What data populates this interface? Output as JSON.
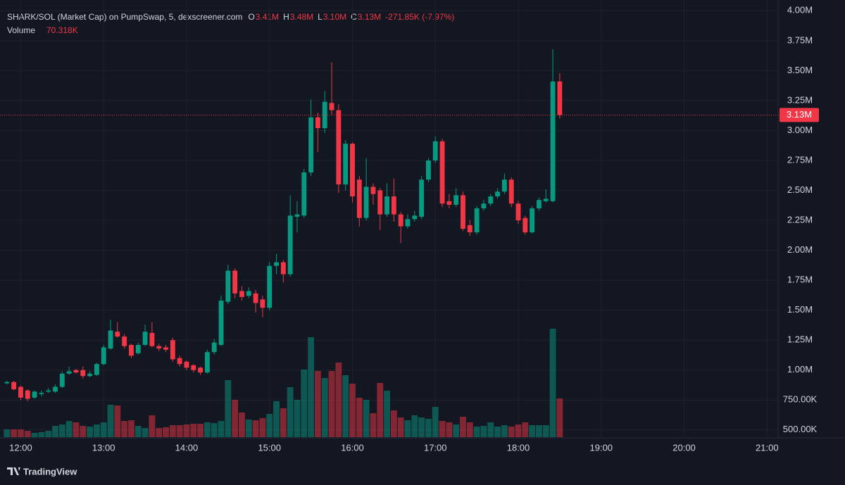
{
  "header": {
    "symbol": "SHARK/SOL (Market Cap) on PumpSwap, 5, dexscreener.com",
    "ohlc": [
      {
        "key": "O",
        "value": "3.41M"
      },
      {
        "key": "H",
        "value": "3.48M"
      },
      {
        "key": "L",
        "value": "3.10M"
      },
      {
        "key": "C",
        "value": "3.13M"
      }
    ],
    "change": "-271.85K (-7.97%)",
    "volume_label": "Volume",
    "volume_value": "70.318K"
  },
  "chart_data": {
    "type": "candlestick",
    "x": [
      "11:50",
      "11:55",
      "12:00",
      "12:05",
      "12:10",
      "12:15",
      "12:20",
      "12:25",
      "12:30",
      "12:35",
      "12:40",
      "12:45",
      "12:50",
      "12:55",
      "13:00",
      "13:05",
      "13:10",
      "13:15",
      "13:20",
      "13:25",
      "13:30",
      "13:35",
      "13:40",
      "13:45",
      "13:50",
      "13:55",
      "14:00",
      "14:05",
      "14:10",
      "14:15",
      "14:20",
      "14:25",
      "14:30",
      "14:35",
      "14:40",
      "14:45",
      "14:50",
      "14:55",
      "15:00",
      "15:05",
      "15:10",
      "15:15",
      "15:20",
      "15:25",
      "15:30",
      "15:35",
      "15:40",
      "15:45",
      "15:50",
      "15:55",
      "16:00",
      "16:05",
      "16:10",
      "16:15",
      "16:20",
      "16:25",
      "16:30",
      "16:35",
      "16:40",
      "16:45",
      "16:50",
      "16:55",
      "17:00",
      "17:05",
      "17:10",
      "17:15",
      "17:20",
      "17:25",
      "17:30",
      "17:35",
      "17:40",
      "17:45",
      "17:50",
      "17:55",
      "18:00",
      "18:05",
      "18:10",
      "18:15",
      "18:20",
      "18:25",
      "18:30"
    ],
    "open": [
      0.89,
      0.9,
      0.86,
      0.83,
      0.77,
      0.8,
      0.82,
      0.82,
      0.86,
      0.97,
      1.0,
      1.0,
      0.95,
      0.96,
      1.05,
      1.18,
      1.32,
      1.28,
      1.21,
      1.14,
      1.21,
      1.31,
      1.2,
      1.19,
      1.25,
      1.1,
      1.07,
      1.04,
      1.02,
      0.98,
      1.15,
      1.21,
      1.57,
      1.83,
      1.66,
      1.62,
      1.64,
      1.59,
      1.52,
      1.87,
      1.9,
      1.8,
      2.28,
      2.29,
      2.65,
      3.11,
      3.02,
      3.23,
      3.17,
      2.55,
      2.89,
      2.59,
      2.27,
      2.53,
      2.5,
      2.3,
      2.45,
      2.3,
      2.2,
      2.26,
      2.28,
      2.59,
      2.75,
      2.91,
      2.41,
      2.38,
      2.46,
      2.21,
      2.15,
      2.35,
      2.39,
      2.45,
      2.49,
      2.59,
      2.39,
      2.27,
      2.15,
      2.35,
      2.41,
      2.41,
      3.41
    ],
    "high": [
      0.91,
      0.91,
      0.87,
      0.84,
      0.83,
      0.83,
      0.85,
      0.88,
      0.99,
      1.03,
      1.01,
      1.03,
      0.99,
      1.06,
      1.21,
      1.42,
      1.4,
      1.3,
      1.22,
      1.23,
      1.38,
      1.4,
      1.22,
      1.21,
      1.27,
      1.12,
      1.08,
      1.05,
      1.03,
      1.17,
      1.26,
      1.62,
      1.88,
      1.85,
      1.7,
      1.69,
      1.67,
      1.62,
      1.9,
      1.97,
      1.92,
      2.46,
      2.41,
      2.68,
      3.26,
      3.15,
      3.33,
      3.57,
      3.22,
      2.92,
      2.9,
      2.62,
      2.77,
      2.56,
      2.52,
      2.56,
      2.6,
      2.32,
      2.3,
      2.33,
      2.62,
      2.77,
      2.95,
      2.93,
      2.47,
      2.52,
      2.49,
      2.25,
      2.37,
      2.42,
      2.47,
      2.52,
      2.64,
      2.61,
      2.41,
      2.29,
      2.37,
      2.44,
      2.51,
      3.68,
      3.48
    ],
    "low": [
      0.88,
      0.83,
      0.75,
      0.74,
      0.76,
      0.78,
      0.81,
      0.81,
      0.85,
      0.96,
      0.97,
      0.93,
      0.94,
      0.95,
      1.04,
      1.17,
      1.27,
      1.18,
      1.1,
      1.13,
      1.2,
      1.19,
      1.16,
      1.15,
      1.07,
      1.03,
      1.0,
      0.98,
      0.96,
      0.97,
      1.13,
      1.2,
      1.55,
      1.6,
      1.58,
      1.6,
      1.48,
      1.44,
      1.5,
      1.8,
      1.73,
      1.78,
      2.15,
      2.27,
      2.62,
      2.82,
      2.98,
      3.13,
      2.48,
      2.5,
      2.4,
      2.2,
      2.25,
      2.38,
      2.17,
      2.28,
      2.24,
      2.06,
      2.18,
      2.24,
      2.26,
      2.57,
      2.73,
      2.36,
      2.35,
      2.36,
      2.16,
      2.12,
      2.13,
      2.33,
      2.37,
      2.43,
      2.47,
      2.36,
      2.22,
      2.13,
      2.14,
      2.33,
      2.4,
      2.4,
      3.1
    ],
    "close": [
      0.9,
      0.84,
      0.77,
      0.76,
      0.82,
      0.81,
      0.83,
      0.86,
      0.97,
      0.99,
      0.98,
      0.95,
      0.97,
      1.05,
      1.19,
      1.33,
      1.28,
      1.2,
      1.12,
      1.21,
      1.32,
      1.2,
      1.18,
      1.17,
      1.09,
      1.05,
      1.02,
      1.0,
      0.98,
      1.15,
      1.23,
      1.58,
      1.83,
      1.64,
      1.61,
      1.66,
      1.56,
      1.52,
      1.87,
      1.9,
      1.8,
      2.29,
      2.3,
      2.65,
      3.11,
      3.02,
      3.24,
      3.17,
      2.55,
      2.89,
      2.45,
      2.27,
      2.53,
      2.47,
      2.3,
      2.45,
      2.3,
      2.2,
      2.26,
      2.29,
      2.59,
      2.75,
      2.91,
      2.39,
      2.38,
      2.46,
      2.18,
      2.15,
      2.35,
      2.39,
      2.45,
      2.49,
      2.59,
      2.39,
      2.25,
      2.15,
      2.35,
      2.42,
      2.43,
      3.41,
      3.13
    ],
    "volume": [
      14100,
      14100,
      14100,
      11500,
      7700,
      9000,
      11500,
      20500,
      23000,
      29400,
      26900,
      20500,
      19200,
      23000,
      26900,
      58900,
      57600,
      29400,
      30700,
      20500,
      16600,
      39700,
      16600,
      17900,
      21800,
      21800,
      23000,
      24300,
      24300,
      26900,
      25600,
      29400,
      103700,
      67800,
      44800,
      32000,
      30700,
      34600,
      42200,
      65300,
      52500,
      90900,
      67800,
      122900,
      181800,
      120300,
      107500,
      120300,
      135700,
      112600,
      97300,
      71700,
      67800,
      43500,
      98600,
      84500,
      48600,
      35800,
      30700,
      39700,
      35800,
      33300,
      55000,
      29400,
      26900,
      23000,
      37100,
      26900,
      19200,
      20500,
      26900,
      19200,
      21800,
      19200,
      23000,
      26900,
      21800,
      21800,
      21800,
      197100,
      70318
    ],
    "ylim": [
      0.44,
      4.09
    ],
    "yticks": [
      {
        "value": 4.0,
        "label": "4.00M"
      },
      {
        "value": 3.75,
        "label": "3.75M"
      },
      {
        "value": 3.5,
        "label": "3.50M"
      },
      {
        "value": 3.25,
        "label": "3.25M"
      },
      {
        "value": 3.0,
        "label": "3.00M"
      },
      {
        "value": 2.75,
        "label": "2.75M"
      },
      {
        "value": 2.5,
        "label": "2.50M"
      },
      {
        "value": 2.25,
        "label": "2.25M"
      },
      {
        "value": 2.0,
        "label": "2.00M"
      },
      {
        "value": 1.75,
        "label": "1.75M"
      },
      {
        "value": 1.5,
        "label": "1.50M"
      },
      {
        "value": 1.25,
        "label": "1.25M"
      },
      {
        "value": 1.0,
        "label": "1.00M"
      },
      {
        "value": 0.75,
        "label": "750.00K"
      },
      {
        "value": 0.5,
        "label": "500.00K"
      }
    ],
    "xlim": [
      "11:45",
      "21:08"
    ],
    "xticks": [
      "12:00",
      "13:00",
      "14:00",
      "15:00",
      "16:00",
      "17:00",
      "18:00",
      "19:00",
      "20:00",
      "21:00"
    ],
    "up_color": "#089981",
    "down_color": "#f23645",
    "last_price": {
      "value": 3.13,
      "label": "3.13M"
    },
    "grid": true
  },
  "footer": {
    "brand": "TradingView"
  }
}
